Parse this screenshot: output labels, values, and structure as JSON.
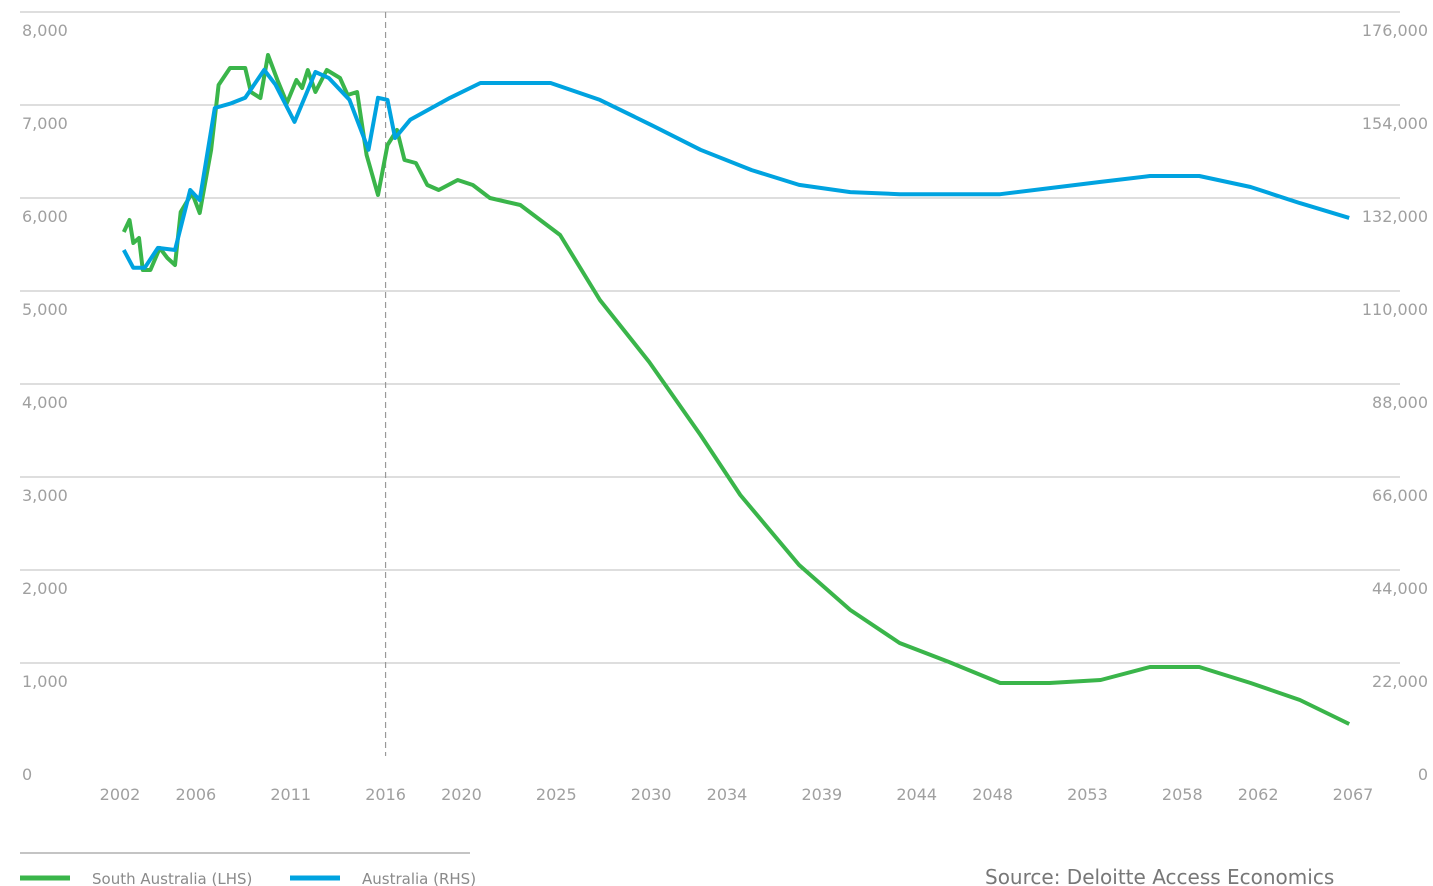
{
  "chart_data": {
    "type": "line",
    "xlim": [
      2002,
      2067
    ],
    "xticks": [
      2002,
      2006,
      2011,
      2016,
      2020,
      2025,
      2030,
      2034,
      2039,
      2044,
      2048,
      2053,
      2058,
      2062,
      2067
    ],
    "ylim": [
      0,
      8000
    ],
    "yticks": [
      0,
      {
        "value": 1000,
        "label": "1,000"
      },
      {
        "value": 2000,
        "label": "2,000"
      },
      {
        "value": 3000,
        "label": "3,000"
      },
      {
        "value": 4000,
        "label": "4,000"
      },
      {
        "value": 5000,
        "label": "5,000"
      },
      {
        "value": 6000,
        "label": "6,000"
      },
      {
        "value": 7000,
        "label": "7,000"
      },
      {
        "value": 8000,
        "label": "8,000"
      }
    ],
    "y2lim": [
      0,
      176000
    ],
    "y2ticks": [
      0,
      {
        "value": 22000,
        "label": "22,000"
      },
      {
        "value": 44000,
        "label": "44,000"
      },
      {
        "value": 66000,
        "label": "66,000"
      },
      {
        "value": 88000,
        "label": "88,000"
      },
      {
        "value": 110000,
        "label": "110,000"
      },
      {
        "value": 132000,
        "label": "132,000"
      },
      {
        "value": 154000,
        "label": "154,000"
      },
      {
        "value": 176000,
        "label": "176,000"
      }
    ],
    "grid": true,
    "reference_line": 2016,
    "legend": "bottom-left",
    "source": "Source: Deloitte Access Economics",
    "series": [
      {
        "name": "South Australia (LHS)",
        "color": "#3ab54a",
        "axis": "y",
        "x": [
          2002.2,
          2002.5,
          2002.7,
          2003.0,
          2003.2,
          2003.6,
          2004.1,
          2004.5,
          2004.9,
          2005.2,
          2005.8,
          2006.2,
          2006.8,
          2007.2,
          2007.8,
          2008.6,
          2008.9,
          2009.4,
          2009.8,
          2010.3,
          2010.8,
          2011.3,
          2011.6,
          2011.9,
          2012.3,
          2012.9,
          2013.6,
          2014.0,
          2014.5,
          2015.0,
          2015.6,
          2016.1,
          2016.6,
          2017.0,
          2017.6,
          2018.2,
          2018.8,
          2019.8,
          2020.6,
          2021.5,
          2023.1,
          2025.2,
          2027.3,
          2029.9,
          2032.6,
          2034.7,
          2037.8,
          2040.5,
          2043.1,
          2045.7,
          2048.4,
          2051.0,
          2053.7,
          2056.3,
          2058.9,
          2061.6,
          2064.2,
          2066.8
        ],
        "values": [
          5634,
          5763,
          5516,
          5570,
          5226,
          5226,
          5462,
          5355,
          5280,
          5849,
          6054,
          5839,
          6516,
          7215,
          7398,
          7398,
          7140,
          7075,
          7538,
          7269,
          7022,
          7269,
          7183,
          7376,
          7140,
          7376,
          7290,
          7108,
          7140,
          6462,
          6032,
          6570,
          6731,
          6409,
          6376,
          6140,
          6086,
          6194,
          6140,
          6000,
          5925,
          5602,
          4903,
          4237,
          3452,
          2806,
          2054,
          1570,
          1215,
          1011,
          785,
          785,
          817,
          957,
          957,
          785,
          602,
          344
        ]
      },
      {
        "name": "Australia (RHS)",
        "color": "#00a3e0",
        "axis": "y2",
        "x": [
          2002.2,
          2002.7,
          2003.3,
          2004.0,
          2004.9,
          2005.7,
          2006.2,
          2007.0,
          2007.8,
          2008.6,
          2009.6,
          2010.2,
          2011.2,
          2012.3,
          2013.0,
          2014.1,
          2015.1,
          2015.6,
          2016.1,
          2016.5,
          2017.3,
          2019.4,
          2021.0,
          2024.7,
          2027.3,
          2030.0,
          2032.6,
          2035.3,
          2037.8,
          2040.5,
          2043.1,
          2048.4,
          2051.5,
          2053.7,
          2056.3,
          2058.9,
          2061.6,
          2064.2,
          2066.8
        ],
        "values": [
          119700,
          115500,
          115500,
          120200,
          119700,
          133900,
          131500,
          153300,
          154300,
          155700,
          162300,
          158800,
          150000,
          161800,
          160400,
          155200,
          143400,
          155700,
          155200,
          146200,
          150500,
          155700,
          159200,
          159200,
          155200,
          149300,
          143400,
          138600,
          135100,
          133400,
          132900,
          132900,
          134600,
          135800,
          137200,
          137200,
          134600,
          130800,
          127300
        ]
      }
    ]
  }
}
